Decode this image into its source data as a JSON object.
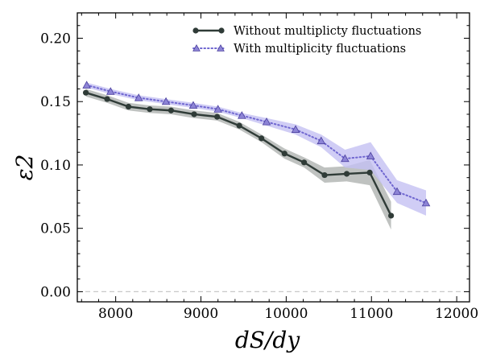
{
  "chart_data": {
    "type": "line",
    "xlabel": "dS/dy",
    "ylabel": "ε2",
    "xlim": [
      7550,
      12150
    ],
    "ylim": [
      -0.008,
      0.22
    ],
    "xticks": [
      8000,
      9000,
      10000,
      11000,
      12000
    ],
    "xtick_labels": [
      "8000",
      "9000",
      "10000",
      "11000",
      "12000"
    ],
    "yticks": [
      0.0,
      0.05,
      0.1,
      0.15,
      0.2
    ],
    "ytick_labels": [
      "0.00",
      "0.05",
      "0.10",
      "0.15",
      "0.20"
    ],
    "reference_line": {
      "y": 0.0,
      "style": "dashed"
    },
    "legend_position": "top-right",
    "series": [
      {
        "name": "Without multiplicty fluctuations",
        "color": "#2f3b37",
        "band_color": "#a9aeab",
        "marker": "circle",
        "line_style": "solid",
        "x": [
          7650,
          7900,
          8150,
          8400,
          8650,
          8920,
          9190,
          9450,
          9710,
          9980,
          10210,
          10450,
          10710,
          10980,
          11230
        ],
        "y": [
          0.157,
          0.152,
          0.146,
          0.144,
          0.143,
          0.14,
          0.138,
          0.131,
          0.121,
          0.109,
          0.102,
          0.092,
          0.093,
          0.094,
          0.06
        ],
        "band": [
          0.003,
          0.003,
          0.003,
          0.003,
          0.003,
          0.003,
          0.003,
          0.003,
          0.003,
          0.004,
          0.004,
          0.006,
          0.006,
          0.01,
          0.011
        ]
      },
      {
        "name": "With multiplicity fluctuations",
        "color": "#6f66d0",
        "marker_color": "#8d84d6",
        "band_color": "#c4c0f2",
        "marker": "triangle",
        "line_style": "dotted",
        "x": [
          7660,
          7940,
          8270,
          8590,
          8910,
          9200,
          9480,
          9770,
          10110,
          10410,
          10690,
          10990,
          11300,
          11640
        ],
        "y": [
          0.163,
          0.158,
          0.153,
          0.15,
          0.147,
          0.144,
          0.139,
          0.134,
          0.128,
          0.119,
          0.105,
          0.107,
          0.079,
          0.07
        ],
        "band": [
          0.002,
          0.002,
          0.002,
          0.002,
          0.002,
          0.002,
          0.002,
          0.003,
          0.004,
          0.005,
          0.007,
          0.011,
          0.009,
          0.01
        ]
      }
    ]
  }
}
